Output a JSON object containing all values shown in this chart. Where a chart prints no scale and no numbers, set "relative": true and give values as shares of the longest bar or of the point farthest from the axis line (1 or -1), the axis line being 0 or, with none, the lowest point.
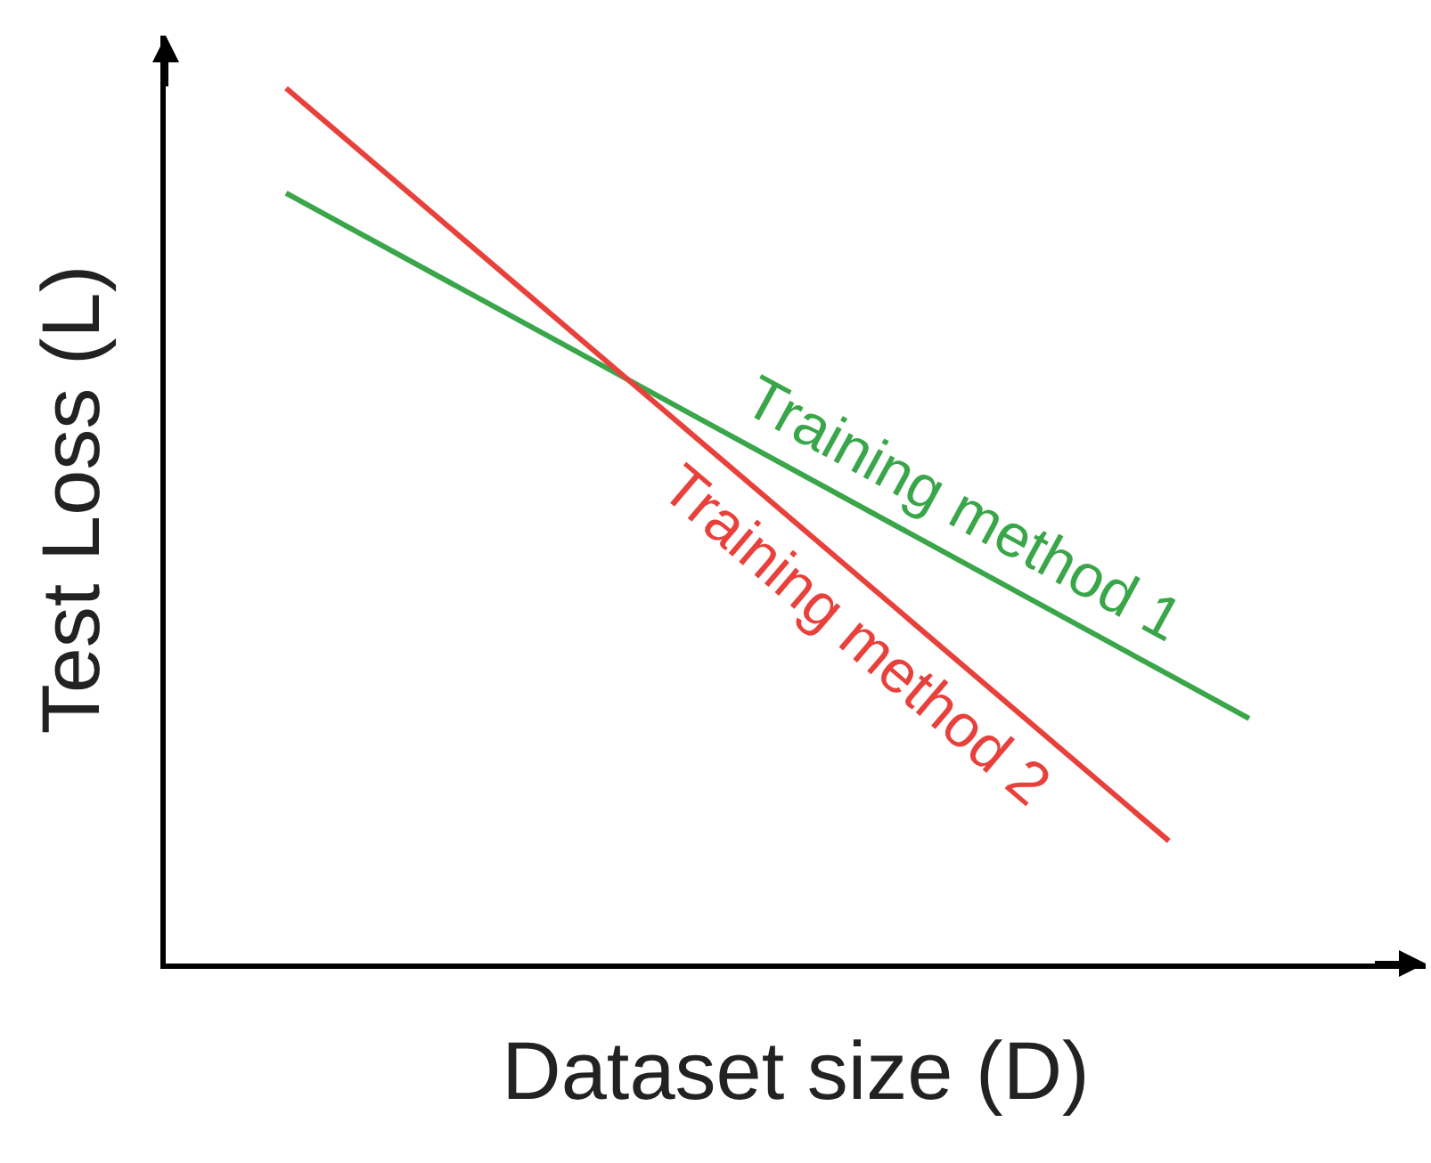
{
  "chart_data": {
    "type": "line",
    "relative": true,
    "xlabel": "Dataset size (D)",
    "ylabel": "Test Loss (L)",
    "grid": false,
    "legend": false,
    "marker": "none",
    "line_style": "solid",
    "categories": [
      null,
      null,
      null,
      null,
      null,
      null,
      null,
      null,
      null,
      null,
      null,
      null,
      null
    ],
    "series": [
      {
        "name": "Training method 1",
        "color": "#3aa64a",
        "values": [
          0.88,
          null,
          null,
          null,
          null,
          null,
          null,
          null,
          null,
          null,
          null,
          null,
          0.28
        ]
      },
      {
        "name": "Training method 2",
        "color": "#e8413c",
        "values": [
          1,
          null,
          null,
          null,
          null,
          null,
          null,
          null,
          null,
          null,
          null,
          0.14,
          null
        ]
      }
    ]
  }
}
